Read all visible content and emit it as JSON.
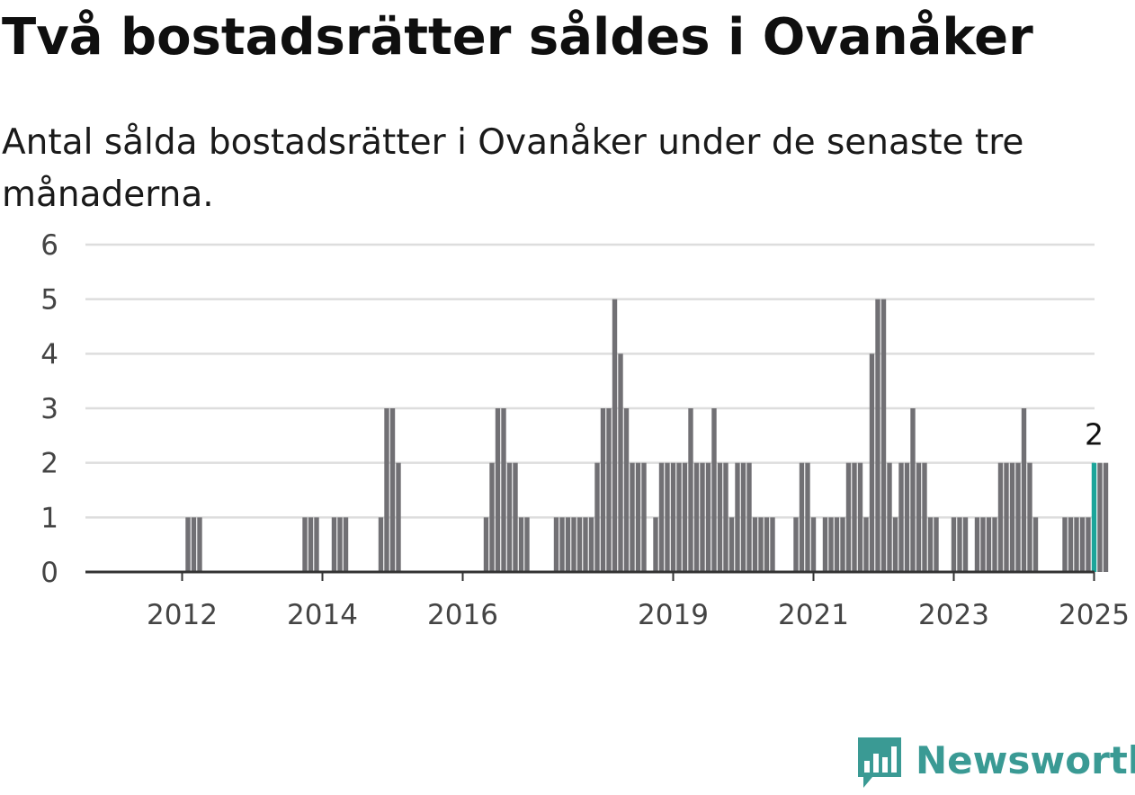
{
  "title": "Två bostadsrätter såldes i Ovanåker",
  "subtitle": "Antal sålda bostadsrätter i Ovanåker under de senaste tre månaderna.",
  "brand": {
    "name": "Newsworthy",
    "icon": "bar-chart-logo-icon",
    "color": "#3a9a94"
  },
  "colors": {
    "bar": "#717074",
    "highlight": "#1ba59a",
    "grid": "#dddddd",
    "axis": "#333333"
  },
  "chart_data": {
    "type": "bar",
    "title": "Två bostadsrätter såldes i Ovanåker",
    "subtitle": "Antal sålda bostadsrätter i Ovanåker under de senaste tre månaderna.",
    "xlabel": "",
    "ylabel": "",
    "ylim": [
      0,
      6
    ],
    "yticks": [
      "0",
      "1",
      "2",
      "3",
      "4",
      "5",
      "6"
    ],
    "xticks": [
      "2012",
      "2014",
      "2016",
      "2019",
      "2021",
      "2023",
      "2025"
    ],
    "xtick_index": [
      8,
      32,
      56,
      92,
      116,
      140,
      164
    ],
    "grid": "horizontal",
    "legend": "none",
    "highlight_index": 164,
    "highlight_label": "2",
    "values": [
      0,
      0,
      0,
      0,
      0,
      0,
      0,
      0,
      0,
      1,
      1,
      1,
      0,
      0,
      0,
      0,
      0,
      0,
      0,
      0,
      0,
      0,
      0,
      0,
      0,
      0,
      0,
      0,
      0,
      1,
      1,
      1,
      0,
      0,
      1,
      1,
      1,
      0,
      0,
      0,
      0,
      0,
      1,
      3,
      3,
      2,
      0,
      0,
      0,
      0,
      0,
      0,
      0,
      0,
      0,
      0,
      0,
      0,
      0,
      0,
      1,
      2,
      3,
      3,
      2,
      2,
      1,
      1,
      0,
      0,
      0,
      0,
      1,
      1,
      1,
      1,
      1,
      1,
      1,
      2,
      3,
      3,
      5,
      4,
      3,
      2,
      2,
      2,
      0,
      1,
      2,
      2,
      2,
      2,
      2,
      3,
      2,
      2,
      2,
      3,
      2,
      2,
      1,
      2,
      2,
      2,
      1,
      1,
      1,
      1,
      0,
      0,
      0,
      1,
      2,
      2,
      1,
      0,
      1,
      1,
      1,
      1,
      2,
      2,
      2,
      1,
      4,
      5,
      5,
      2,
      1,
      2,
      2,
      3,
      2,
      2,
      1,
      1,
      0,
      0,
      1,
      1,
      1,
      0,
      1,
      1,
      1,
      1,
      2,
      2,
      2,
      2,
      3,
      2,
      1,
      0,
      0,
      0,
      0,
      1,
      1,
      1,
      1,
      1,
      2,
      2,
      2
    ]
  }
}
